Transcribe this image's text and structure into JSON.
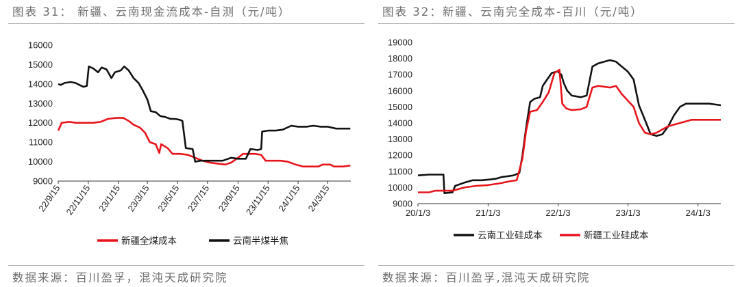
{
  "chart_data": [
    {
      "type": "line",
      "title": "图表 31： 新疆、云南现金流成本-自测（元/吨）",
      "source": "数据来源：百川盈孚，混沌天成研究院",
      "x_tick_labels": [
        "22/9/15",
        "22/11/15",
        "23/1/15",
        "23/3/15",
        "23/5/15",
        "23/7/15",
        "23/9/15",
        "23/11/15",
        "24/1/15",
        "24/3/15"
      ],
      "x_range": [
        "2022-09-15",
        "2024-05-01"
      ],
      "y_ticks": [
        9000,
        10000,
        11000,
        12000,
        13000,
        14000,
        15000,
        16000
      ],
      "ylim": [
        9000,
        16000
      ],
      "grid": false,
      "legend_position": "bottom",
      "series": [
        {
          "name": "新疆全煤成本",
          "color": "#e8141b",
          "points": [
            [
              "2022-09-15",
              11600
            ],
            [
              "2022-09-22",
              12000
            ],
            [
              "2022-10-08",
              12050
            ],
            [
              "2022-10-20",
              12000
            ],
            [
              "2022-11-05",
              12000
            ],
            [
              "2022-11-25",
              12000
            ],
            [
              "2022-12-10",
              12050
            ],
            [
              "2022-12-25",
              12200
            ],
            [
              "2023-01-10",
              12250
            ],
            [
              "2023-01-25",
              12250
            ],
            [
              "2023-02-05",
              12100
            ],
            [
              "2023-02-15",
              11900
            ],
            [
              "2023-02-28",
              11750
            ],
            [
              "2023-03-10",
              11500
            ],
            [
              "2023-03-20",
              11000
            ],
            [
              "2023-04-01",
              10900
            ],
            [
              "2023-04-08",
              10450
            ],
            [
              "2023-04-12",
              10900
            ],
            [
              "2023-04-25",
              10700
            ],
            [
              "2023-05-05",
              10400
            ],
            [
              "2023-05-20",
              10400
            ],
            [
              "2023-06-05",
              10350
            ],
            [
              "2023-06-20",
              10200
            ],
            [
              "2023-07-05",
              10050
            ],
            [
              "2023-07-20",
              9950
            ],
            [
              "2023-08-05",
              9900
            ],
            [
              "2023-08-20",
              9850
            ],
            [
              "2023-09-01",
              9950
            ],
            [
              "2023-09-15",
              10200
            ],
            [
              "2023-09-25",
              10400
            ],
            [
              "2023-10-10",
              10400
            ],
            [
              "2023-10-20",
              10400
            ],
            [
              "2023-11-01",
              10350
            ],
            [
              "2023-11-10",
              10050
            ],
            [
              "2023-11-25",
              10050
            ],
            [
              "2023-12-10",
              10050
            ],
            [
              "2023-12-25",
              10000
            ],
            [
              "2024-01-10",
              9850
            ],
            [
              "2024-01-25",
              9750
            ],
            [
              "2024-02-10",
              9750
            ],
            [
              "2024-02-25",
              9750
            ],
            [
              "2024-03-05",
              9850
            ],
            [
              "2024-03-20",
              9850
            ],
            [
              "2024-03-28",
              9750
            ],
            [
              "2024-04-15",
              9750
            ],
            [
              "2024-04-30",
              9800
            ]
          ]
        },
        {
          "name": "云南半煤半焦",
          "color": "#111111",
          "points": [
            [
              "2022-09-15",
              14000
            ],
            [
              "2022-09-20",
              13950
            ],
            [
              "2022-09-28",
              14050
            ],
            [
              "2022-10-10",
              14100
            ],
            [
              "2022-10-20",
              14050
            ],
            [
              "2022-10-28",
              13950
            ],
            [
              "2022-11-05",
              13850
            ],
            [
              "2022-11-12",
              13900
            ],
            [
              "2022-11-16",
              14900
            ],
            [
              "2022-11-25",
              14800
            ],
            [
              "2022-12-05",
              14600
            ],
            [
              "2022-12-12",
              14850
            ],
            [
              "2022-12-22",
              14750
            ],
            [
              "2023-01-01",
              14300
            ],
            [
              "2023-01-08",
              14600
            ],
            [
              "2023-01-20",
              14700
            ],
            [
              "2023-01-27",
              14900
            ],
            [
              "2023-02-05",
              14700
            ],
            [
              "2023-02-15",
              14300
            ],
            [
              "2023-02-25",
              14050
            ],
            [
              "2023-03-05",
              13700
            ],
            [
              "2023-03-15",
              13200
            ],
            [
              "2023-03-22",
              12600
            ],
            [
              "2023-04-01",
              12550
            ],
            [
              "2023-04-10",
              12350
            ],
            [
              "2023-04-20",
              12300
            ],
            [
              "2023-05-01",
              12200
            ],
            [
              "2023-05-10",
              12200
            ],
            [
              "2023-05-20",
              12150
            ],
            [
              "2023-05-25",
              12100
            ],
            [
              "2023-06-01",
              10700
            ],
            [
              "2023-06-15",
              10650
            ],
            [
              "2023-06-20",
              10000
            ],
            [
              "2023-07-01",
              10050
            ],
            [
              "2023-07-15",
              10050
            ],
            [
              "2023-08-01",
              10050
            ],
            [
              "2023-08-15",
              10050
            ],
            [
              "2023-09-01",
              10200
            ],
            [
              "2023-09-15",
              10150
            ],
            [
              "2023-10-01",
              10150
            ],
            [
              "2023-10-10",
              10650
            ],
            [
              "2023-10-25",
              10600
            ],
            [
              "2023-11-01",
              10650
            ],
            [
              "2023-11-03",
              11550
            ],
            [
              "2023-11-15",
              11600
            ],
            [
              "2023-12-01",
              11600
            ],
            [
              "2023-12-15",
              11650
            ],
            [
              "2024-01-01",
              11850
            ],
            [
              "2024-01-15",
              11800
            ],
            [
              "2024-02-01",
              11800
            ],
            [
              "2024-02-15",
              11850
            ],
            [
              "2024-03-01",
              11800
            ],
            [
              "2024-03-15",
              11800
            ],
            [
              "2024-04-01",
              11700
            ],
            [
              "2024-04-15",
              11700
            ],
            [
              "2024-04-30",
              11700
            ]
          ]
        }
      ]
    },
    {
      "type": "line",
      "title": "图表 32：新疆、云南完全成本-百川（元/吨）",
      "source": "数据来源：百川盈孚,混沌天成研究院",
      "x_tick_labels": [
        "20/1/3",
        "21/1/3",
        "22/1/3",
        "23/1/3",
        "24/1/3"
      ],
      "x_range": [
        "2020-01-03",
        "2024-05-01"
      ],
      "y_ticks": [
        9000,
        10000,
        11000,
        12000,
        13000,
        14000,
        15000,
        16000,
        17000,
        18000,
        19000
      ],
      "ylim": [
        9000,
        19000
      ],
      "grid": false,
      "legend_position": "bottom",
      "series": [
        {
          "name": "云南工业硅成本",
          "color": "#111111",
          "points": [
            [
              "2020-01-03",
              10750
            ],
            [
              "2020-03-01",
              10800
            ],
            [
              "2020-05-15",
              10800
            ],
            [
              "2020-05-20",
              9650
            ],
            [
              "2020-07-01",
              9700
            ],
            [
              "2020-07-15",
              10100
            ],
            [
              "2020-09-01",
              10300
            ],
            [
              "2020-10-15",
              10450
            ],
            [
              "2020-12-01",
              10450
            ],
            [
              "2021-01-15",
              10500
            ],
            [
              "2021-02-15",
              10550
            ],
            [
              "2021-03-15",
              10650
            ],
            [
              "2021-04-15",
              10700
            ],
            [
              "2021-05-15",
              10750
            ],
            [
              "2021-06-15",
              10900
            ],
            [
              "2021-07-01",
              12000
            ],
            [
              "2021-07-20",
              13700
            ],
            [
              "2021-08-10",
              15300
            ],
            [
              "2021-09-01",
              15500
            ],
            [
              "2021-10-01",
              15600
            ],
            [
              "2021-10-15",
              16300
            ],
            [
              "2021-11-01",
              16600
            ],
            [
              "2021-12-01",
              17100
            ],
            [
              "2022-01-01",
              17200
            ],
            [
              "2022-01-20",
              17000
            ],
            [
              "2022-02-01",
              16500
            ],
            [
              "2022-02-20",
              16000
            ],
            [
              "2022-03-15",
              15700
            ],
            [
              "2022-05-01",
              15600
            ],
            [
              "2022-06-01",
              15700
            ],
            [
              "2022-07-01",
              17500
            ],
            [
              "2022-08-01",
              17700
            ],
            [
              "2022-09-01",
              17800
            ],
            [
              "2022-10-01",
              17900
            ],
            [
              "2022-11-01",
              17800
            ],
            [
              "2022-12-01",
              17500
            ],
            [
              "2023-01-01",
              17200
            ],
            [
              "2023-02-01",
              16700
            ],
            [
              "2023-03-01",
              15100
            ],
            [
              "2023-04-01",
              14200
            ],
            [
              "2023-05-01",
              13300
            ],
            [
              "2023-06-01",
              13200
            ],
            [
              "2023-07-01",
              13300
            ],
            [
              "2023-08-01",
              13800
            ],
            [
              "2023-09-01",
              14500
            ],
            [
              "2023-10-01",
              15000
            ],
            [
              "2023-11-01",
              15200
            ],
            [
              "2024-01-01",
              15200
            ],
            [
              "2024-03-01",
              15200
            ],
            [
              "2024-05-01",
              15100
            ]
          ]
        },
        {
          "name": "新疆工业硅成本",
          "color": "#e8141b",
          "points": [
            [
              "2020-01-03",
              9700
            ],
            [
              "2020-03-01",
              9700
            ],
            [
              "2020-04-01",
              9800
            ],
            [
              "2020-06-01",
              9800
            ],
            [
              "2020-07-01",
              9800
            ],
            [
              "2020-09-01",
              10000
            ],
            [
              "2020-11-01",
              10100
            ],
            [
              "2021-01-01",
              10150
            ],
            [
              "2021-03-01",
              10250
            ],
            [
              "2021-05-01",
              10400
            ],
            [
              "2021-06-01",
              10450
            ],
            [
              "2021-07-01",
              11800
            ],
            [
              "2021-07-20",
              13500
            ],
            [
              "2021-08-10",
              14700
            ],
            [
              "2021-09-15",
              14800
            ],
            [
              "2021-10-15",
              15300
            ],
            [
              "2021-11-15",
              15900
            ],
            [
              "2021-12-15",
              17100
            ],
            [
              "2022-01-10",
              17300
            ],
            [
              "2022-01-25",
              15200
            ],
            [
              "2022-02-15",
              14900
            ],
            [
              "2022-03-15",
              14800
            ],
            [
              "2022-05-01",
              14850
            ],
            [
              "2022-06-01",
              15000
            ],
            [
              "2022-07-01",
              16200
            ],
            [
              "2022-08-01",
              16300
            ],
            [
              "2022-10-01",
              16200
            ],
            [
              "2022-11-01",
              16300
            ],
            [
              "2022-12-01",
              15800
            ],
            [
              "2023-01-01",
              15400
            ],
            [
              "2023-02-01",
              15000
            ],
            [
              "2023-03-01",
              14000
            ],
            [
              "2023-04-01",
              13400
            ],
            [
              "2023-05-01",
              13300
            ],
            [
              "2023-06-01",
              13400
            ],
            [
              "2023-07-01",
              13600
            ],
            [
              "2023-08-01",
              13800
            ],
            [
              "2023-10-01",
              14000
            ],
            [
              "2023-12-01",
              14200
            ],
            [
              "2024-03-01",
              14200
            ],
            [
              "2024-05-01",
              14200
            ]
          ]
        }
      ]
    }
  ]
}
